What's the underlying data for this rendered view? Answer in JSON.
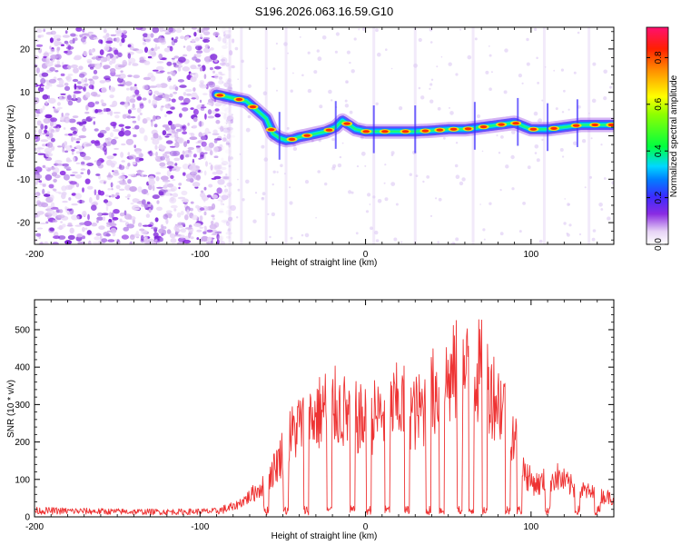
{
  "title": "S196.2026.063.16.59.G10",
  "chart_data": [
    {
      "type": "heatmap",
      "name": "spectrogram",
      "xlabel": "Height of straight line (km)",
      "ylabel": "Frequency (Hz)",
      "xlim": [
        -200,
        150
      ],
      "ylim": [
        -25,
        25
      ],
      "x_ticks": [
        -200,
        -100,
        0,
        100
      ],
      "x_tick_labels": [
        "-200",
        "-100",
        "0",
        "100"
      ],
      "y_ticks": [
        20,
        10,
        0,
        -10,
        -20
      ],
      "y_tick_labels": [
        "20",
        "10",
        "0",
        "-10",
        "-20"
      ],
      "noise_region_xmax": -88,
      "ridge": {
        "x": [
          -90,
          -84,
          -78,
          -72,
          -66,
          -60,
          -56,
          -52,
          -48,
          -44,
          -40,
          -36,
          -30,
          -24,
          -18,
          -14,
          -10,
          -6,
          0,
          10,
          20,
          30,
          40,
          50,
          60,
          70,
          80,
          90,
          100,
          110,
          120,
          130,
          140,
          150
        ],
        "freq": [
          9.5,
          9,
          8.5,
          8,
          6,
          4,
          0.5,
          -0.5,
          -1,
          -0.8,
          -0.3,
          0,
          0.5,
          1,
          2,
          3.5,
          2.5,
          1.5,
          1,
          1,
          1,
          1,
          1.2,
          1.5,
          1.5,
          2,
          2.5,
          3,
          1.5,
          1.5,
          2,
          2.5,
          2.5,
          2.5
        ]
      },
      "colorbar": {
        "label": "Normalized spectral amplitude",
        "ticks": [
          0.0,
          0.2,
          0.4,
          0.6,
          0.8
        ],
        "tick_labels": [
          "0.0",
          "0.2",
          "0.4",
          "0.6",
          "0.8"
        ],
        "range": [
          0,
          0.93
        ]
      }
    },
    {
      "type": "line",
      "name": "snr",
      "xlabel": "Height of straight line (km)",
      "ylabel": "SNR (10 * v/v)",
      "xlim": [
        -200,
        150
      ],
      "ylim": [
        0,
        580
      ],
      "x_ticks": [
        -200,
        -100,
        0,
        100
      ],
      "x_tick_labels": [
        "-200",
        "-100",
        "0",
        "100"
      ],
      "y_ticks": [
        0,
        100,
        200,
        300,
        400,
        500
      ],
      "y_tick_labels": [
        "0",
        "100",
        "200",
        "300",
        "400",
        "500"
      ],
      "color": "#ee3333",
      "envelope": {
        "x": [
          -200,
          -170,
          -140,
          -110,
          -90,
          -80,
          -75,
          -70,
          -65,
          -60,
          -55,
          -50,
          -45,
          -40,
          -35,
          -30,
          -25,
          -20,
          -15,
          -10,
          -5,
          0,
          5,
          10,
          15,
          20,
          25,
          30,
          35,
          40,
          45,
          50,
          55,
          60,
          65,
          70,
          75,
          80,
          85,
          90,
          95,
          100,
          105,
          110,
          115,
          120,
          125,
          130,
          135,
          140,
          150
        ],
        "y": [
          22,
          20,
          18,
          18,
          20,
          35,
          55,
          75,
          100,
          130,
          180,
          240,
          300,
          340,
          360,
          370,
          400,
          410,
          390,
          380,
          360,
          350,
          370,
          380,
          390,
          420,
          410,
          380,
          400,
          450,
          480,
          500,
          530,
          520,
          540,
          530,
          480,
          430,
          400,
          300,
          180,
          130,
          120,
          140,
          150,
          130,
          110,
          100,
          90,
          80,
          70
        ]
      },
      "dropouts": [
        -60,
        -48,
        -36,
        -22,
        -8,
        2,
        13,
        25,
        38,
        46,
        57,
        64,
        72,
        86,
        93,
        110,
        128,
        140
      ]
    }
  ]
}
